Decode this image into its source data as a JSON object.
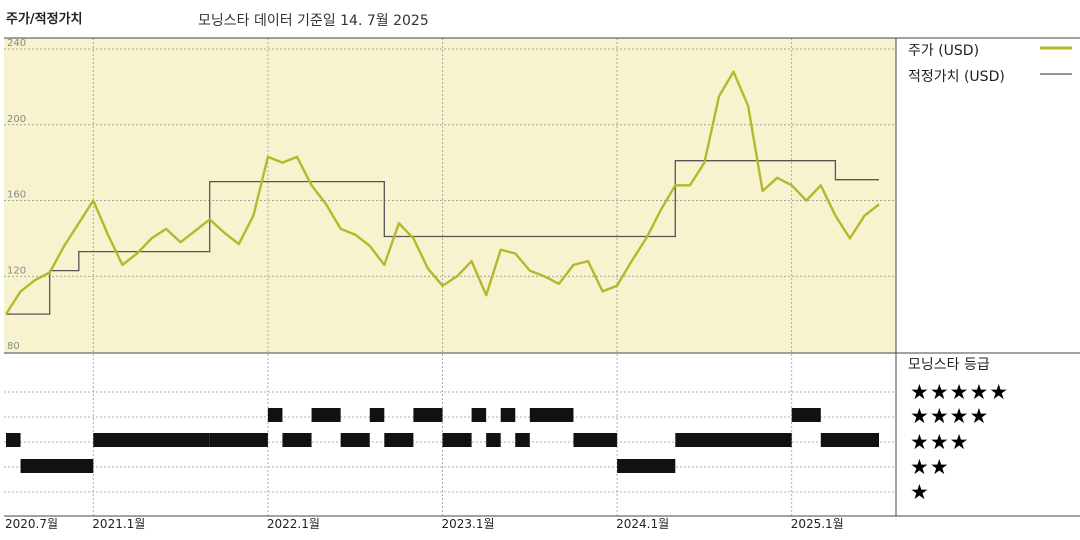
{
  "header": {
    "title": "주가/적정가치",
    "subtitle": "모닝스타 데이터 기준일 14. 7월 2025"
  },
  "legend": {
    "price_label": "주가 (USD)",
    "fair_label": "적정가치 (USD)"
  },
  "rating": {
    "title": "모닝스타 등급",
    "levels": [
      "★★★★★",
      "★★★★",
      "★★★",
      "★★",
      "★"
    ]
  },
  "colors": {
    "price": "#b5b82a",
    "fair": "#555555",
    "panel_bg": "#f7f3cf",
    "rating_bar": "#111111"
  },
  "chart_data": [
    {
      "type": "line",
      "title": "주가/적정가치",
      "y_tick_labels": [
        "80",
        "120",
        "160",
        "200",
        "240"
      ],
      "x_tick_labels": [
        "2020.7월",
        "2021.1월",
        "2022.1월",
        "2023.1월",
        "2024.1월",
        "2025.1월"
      ],
      "ylim": [
        80,
        240
      ],
      "grid": true,
      "legend_position": "right",
      "series": [
        {
          "name": "주가 (USD)",
          "points": [
            [
              "2020-07",
              100
            ],
            [
              "2020-08",
              112
            ],
            [
              "2020-09",
              118
            ],
            [
              "2020-10",
              122
            ],
            [
              "2020-11",
              136
            ],
            [
              "2020-12",
              148
            ],
            [
              "2021-01",
              160
            ],
            [
              "2021-02",
              142
            ],
            [
              "2021-03",
              126
            ],
            [
              "2021-04",
              132
            ],
            [
              "2021-05",
              140
            ],
            [
              "2021-06",
              145
            ],
            [
              "2021-07",
              138
            ],
            [
              "2021-08",
              144
            ],
            [
              "2021-09",
              150
            ],
            [
              "2021-10",
              143
            ],
            [
              "2021-11",
              137
            ],
            [
              "2021-12",
              152
            ],
            [
              "2022-01",
              183
            ],
            [
              "2022-02",
              180
            ],
            [
              "2022-03",
              183
            ],
            [
              "2022-04",
              168
            ],
            [
              "2022-05",
              158
            ],
            [
              "2022-06",
              145
            ],
            [
              "2022-07",
              142
            ],
            [
              "2022-08",
              136
            ],
            [
              "2022-09",
              126
            ],
            [
              "2022-10",
              148
            ],
            [
              "2022-11",
              140
            ],
            [
              "2022-12",
              124
            ],
            [
              "2023-01",
              115
            ],
            [
              "2023-02",
              120
            ],
            [
              "2023-03",
              128
            ],
            [
              "2023-04",
              110
            ],
            [
              "2023-05",
              134
            ],
            [
              "2023-06",
              132
            ],
            [
              "2023-07",
              123
            ],
            [
              "2023-08",
              120
            ],
            [
              "2023-09",
              116
            ],
            [
              "2023-10",
              126
            ],
            [
              "2023-11",
              128
            ],
            [
              "2023-12",
              112
            ],
            [
              "2024-01",
              115
            ],
            [
              "2024-02",
              128
            ],
            [
              "2024-03",
              140
            ],
            [
              "2024-04",
              155
            ],
            [
              "2024-05",
              168
            ],
            [
              "2024-06",
              168
            ],
            [
              "2024-07",
              180
            ],
            [
              "2024-08",
              215
            ],
            [
              "2024-09",
              228
            ],
            [
              "2024-10",
              210
            ],
            [
              "2024-11",
              165
            ],
            [
              "2024-12",
              172
            ],
            [
              "2025-01",
              168
            ],
            [
              "2025-02",
              160
            ],
            [
              "2025-03",
              168
            ],
            [
              "2025-04",
              152
            ],
            [
              "2025-05",
              140
            ],
            [
              "2025-06",
              152
            ],
            [
              "2025-07",
              158
            ]
          ]
        },
        {
          "name": "적정가치 (USD)",
          "points": [
            [
              "2020-07",
              100
            ],
            [
              "2020-10",
              100
            ],
            [
              "2020-10",
              123
            ],
            [
              "2020-12",
              123
            ],
            [
              "2020-12",
              133
            ],
            [
              "2021-09",
              133
            ],
            [
              "2021-09",
              170
            ],
            [
              "2022-09",
              170
            ],
            [
              "2022-09",
              141
            ],
            [
              "2024-05",
              141
            ],
            [
              "2024-05",
              181
            ],
            [
              "2025-04",
              181
            ],
            [
              "2025-04",
              171
            ],
            [
              "2025-07",
              171
            ]
          ]
        }
      ]
    },
    {
      "type": "table",
      "title": "모닝스타 등급",
      "categories": [
        "★★★★★",
        "★★★★",
        "★★★",
        "★★",
        "★"
      ],
      "rating_periods": [
        {
          "stars": 3,
          "start": "2020-07",
          "end": "2020-08"
        },
        {
          "stars": 2,
          "start": "2020-08",
          "end": "2021-01"
        },
        {
          "stars": 3,
          "start": "2021-01",
          "end": "2021-09"
        },
        {
          "stars": 3,
          "start": "2021-09",
          "end": "2022-01"
        },
        {
          "stars": 4,
          "start": "2022-01",
          "end": "2022-02"
        },
        {
          "stars": 3,
          "start": "2022-02",
          "end": "2022-04"
        },
        {
          "stars": 4,
          "start": "2022-04",
          "end": "2022-06"
        },
        {
          "stars": 3,
          "start": "2022-06",
          "end": "2022-08"
        },
        {
          "stars": 4,
          "start": "2022-08",
          "end": "2022-09"
        },
        {
          "stars": 3,
          "start": "2022-09",
          "end": "2022-11"
        },
        {
          "stars": 4,
          "start": "2022-11",
          "end": "2023-01"
        },
        {
          "stars": 3,
          "start": "2023-01",
          "end": "2023-03"
        },
        {
          "stars": 4,
          "start": "2023-03",
          "end": "2023-04"
        },
        {
          "stars": 3,
          "start": "2023-04",
          "end": "2023-05"
        },
        {
          "stars": 4,
          "start": "2023-05",
          "end": "2023-06"
        },
        {
          "stars": 3,
          "start": "2023-06",
          "end": "2023-07"
        },
        {
          "stars": 4,
          "start": "2023-07",
          "end": "2023-10"
        },
        {
          "stars": 3,
          "start": "2023-10",
          "end": "2024-01"
        },
        {
          "stars": 2,
          "start": "2024-01",
          "end": "2024-05"
        },
        {
          "stars": 3,
          "start": "2024-05",
          "end": "2025-01"
        },
        {
          "stars": 4,
          "start": "2025-01",
          "end": "2025-03"
        },
        {
          "stars": 3,
          "start": "2025-03",
          "end": "2025-07"
        }
      ]
    }
  ]
}
